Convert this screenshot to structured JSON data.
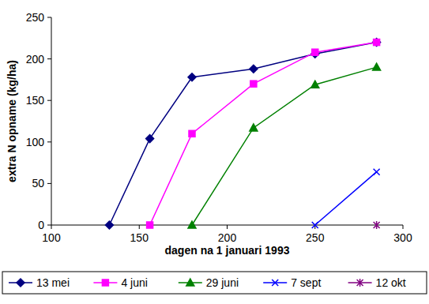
{
  "chart_data": {
    "type": "line",
    "x_label": "dagen na 1 januari 1993",
    "y_label": "extra N opname (kg/ha)",
    "x": [
      133,
      156,
      180,
      215,
      250,
      285
    ],
    "series": [
      {
        "name": "13 mei",
        "color": "#000080",
        "marker": "diamond",
        "values": [
          0,
          104,
          178,
          188,
          206,
          220
        ]
      },
      {
        "name": "4 juni",
        "color": "#ff00ff",
        "marker": "square",
        "values": [
          null,
          0,
          110,
          170,
          208,
          220
        ]
      },
      {
        "name": "29 juni",
        "color": "#008000",
        "marker": "triangle",
        "values": [
          null,
          null,
          0,
          117,
          169,
          190
        ]
      },
      {
        "name": "7 sept",
        "color": "#0000ff",
        "marker": "x",
        "values": [
          null,
          null,
          null,
          null,
          0,
          64
        ]
      },
      {
        "name": "12 okt",
        "color": "#800080",
        "marker": "star",
        "values": [
          null,
          null,
          null,
          null,
          null,
          0
        ]
      }
    ],
    "xlim": [
      100,
      300
    ],
    "xticks": [
      100,
      150,
      200,
      250,
      300
    ],
    "ylim": [
      0,
      250
    ],
    "yticks": [
      0,
      50,
      100,
      150,
      200,
      250
    ],
    "grid": false,
    "legend": "bottom"
  }
}
